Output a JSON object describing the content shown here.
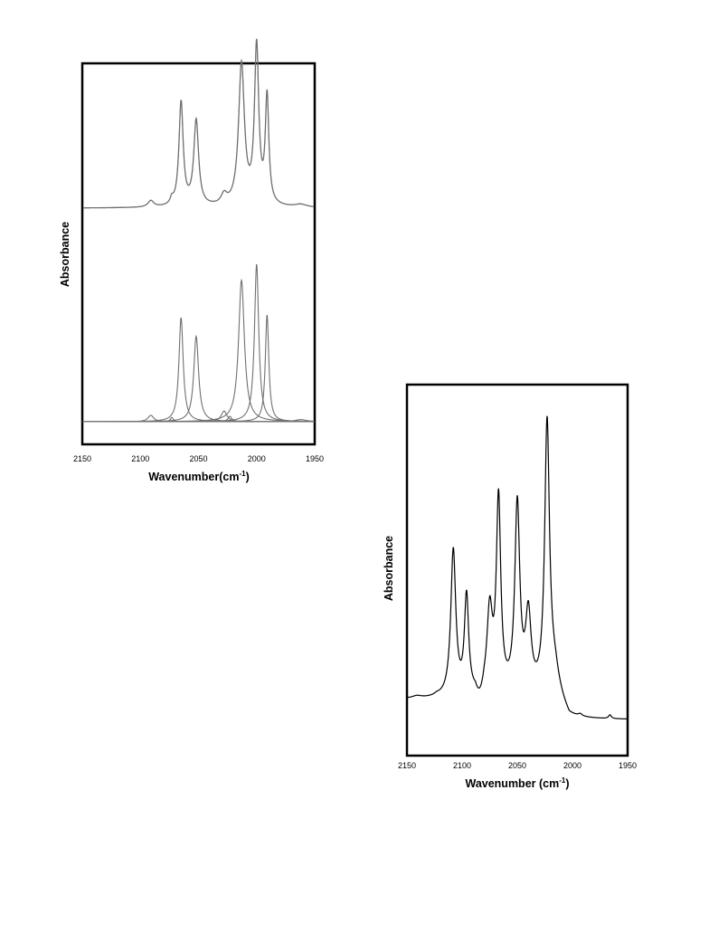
{
  "chart_data": [
    {
      "type": "line",
      "title": "",
      "xlabel": "Wavenumber(cm",
      "xlabel_sup": "-1",
      "xlabel_close": ")",
      "ylabel": "Absorbance",
      "xlim": [
        2150,
        1950
      ],
      "x_reversed": true,
      "xticks": [
        "2150",
        "2100",
        "2050",
        "2000",
        "1950"
      ],
      "grid": false,
      "line_color": "#707070",
      "series": [
        {
          "role": "measured spectrum (upper trace, overlaid with fit)",
          "offset": 0.4,
          "peaks": [
            {
              "x": 2091,
              "height": 0.012,
              "width": 3
            },
            {
              "x": 2073,
              "height": 0.01,
              "width": 1.5
            },
            {
              "x": 2065,
              "height": 0.195,
              "width": 2.2
            },
            {
              "x": 2052,
              "height": 0.16,
              "width": 2.5
            },
            {
              "x": 2028,
              "height": 0.018,
              "width": 3
            },
            {
              "x": 2013,
              "height": 0.265,
              "width": 3.0
            },
            {
              "x": 2000,
              "height": 0.295,
              "width": 2.2
            },
            {
              "x": 1991,
              "height": 0.2,
              "width": 1.8
            },
            {
              "x": 1962,
              "height": 0.005,
              "width": 6
            }
          ]
        },
        {
          "role": "fitted component bands (lower traces)",
          "offset": 0.0,
          "components": [
            {
              "x": 2091,
              "height": 0.012,
              "width": 3
            },
            {
              "x": 2073,
              "height": 0.008,
              "width": 1.5
            },
            {
              "x": 2065,
              "height": 0.195,
              "width": 2.2
            },
            {
              "x": 2052,
              "height": 0.16,
              "width": 2.5
            },
            {
              "x": 2028,
              "height": 0.02,
              "width": 3
            },
            {
              "x": 2023,
              "height": 0.01,
              "width": 2
            },
            {
              "x": 2013,
              "height": 0.265,
              "width": 3.0
            },
            {
              "x": 2000,
              "height": 0.295,
              "width": 2.2
            },
            {
              "x": 1991,
              "height": 0.2,
              "width": 1.8
            },
            {
              "x": 1962,
              "height": 0.004,
              "width": 6
            }
          ]
        }
      ]
    },
    {
      "type": "line",
      "title": "",
      "xlabel": "Wavenumber (cm",
      "xlabel_sup": "-1",
      "xlabel_close": ")",
      "ylabel": "Absorbance",
      "xlim": [
        2150,
        1950
      ],
      "x_reversed": true,
      "xticks": [
        "2150",
        "2100",
        "2050",
        "2000",
        "1950"
      ],
      "grid": false,
      "line_color": "#000000",
      "series": [
        {
          "role": "spectrum",
          "baseline": 0.13,
          "baseline_wiggles": [
            {
              "x": 2141,
              "height": 0.006,
              "width": 5
            },
            {
              "x": 2123,
              "height": 0.004,
              "width": 3
            },
            {
              "x": 1993,
              "height": 0.006,
              "width": 2
            },
            {
              "x": 1966,
              "height": 0.01,
              "width": 1.5
            }
          ],
          "peaks": [
            {
              "x": 2108,
              "height": 0.395,
              "width": 2.7
            },
            {
              "x": 2096,
              "height": 0.265,
              "width": 2.3
            },
            {
              "x": 2075,
              "height": 0.22,
              "width": 3.0
            },
            {
              "x": 2067,
              "height": 0.52,
              "width": 2.4
            },
            {
              "x": 2050,
              "height": 0.51,
              "width": 2.7
            },
            {
              "x": 2040,
              "height": 0.205,
              "width": 3.0
            },
            {
              "x": 2023,
              "height": 0.72,
              "width": 2.6
            },
            {
              "x": 2017,
              "height": 0.06,
              "width": 6
            }
          ]
        }
      ]
    }
  ]
}
